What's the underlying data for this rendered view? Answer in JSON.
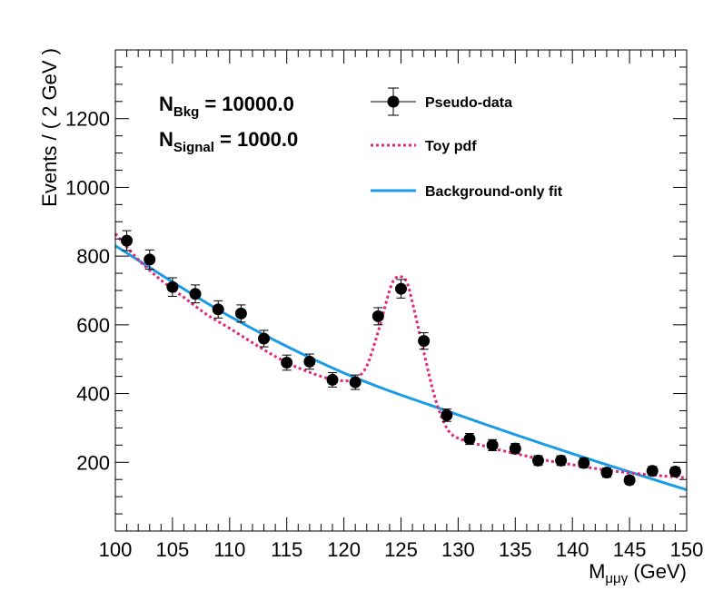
{
  "chart_data": {
    "type": "scatter",
    "xlabel_main": "M",
    "xlabel_sub": "μμγ",
    "xlabel_unit": " (GeV)",
    "ylabel": "Events / ( 2 GeV )",
    "xlim": [
      100,
      150
    ],
    "ylim": [
      0,
      1400
    ],
    "x_ticks": [
      100,
      105,
      110,
      115,
      120,
      125,
      130,
      135,
      140,
      145,
      150
    ],
    "y_ticks": [
      200,
      400,
      600,
      800,
      1000,
      1200
    ],
    "grid": false,
    "annotations": [
      {
        "main": "N",
        "sub": "Bkg",
        "value": " = 10000.0"
      },
      {
        "main": "N",
        "sub": "Signal",
        "value": " = 1000.0"
      }
    ],
    "legend": [
      {
        "label": "Pseudo-data",
        "style": "marker",
        "color": "#000000"
      },
      {
        "label": "Toy pdf",
        "style": "dotted",
        "color": "#e0287a"
      },
      {
        "label": "Background-only fit",
        "style": "solid",
        "color": "#1a9be6"
      }
    ],
    "series": [
      {
        "name": "Pseudo-data",
        "style": "marker",
        "color": "#000000",
        "x": [
          101,
          103,
          105,
          107,
          109,
          111,
          113,
          115,
          117,
          119,
          121,
          123,
          125,
          127,
          129,
          131,
          133,
          135,
          137,
          139,
          141,
          143,
          145,
          147,
          149
        ],
        "y": [
          845,
          790,
          710,
          690,
          645,
          633,
          560,
          490,
          493,
          440,
          433,
          625,
          705,
          553,
          337,
          268,
          250,
          240,
          205,
          205,
          198,
          170,
          148,
          175,
          173
        ],
        "yerr": [
          29,
          28,
          27,
          26,
          25,
          25,
          24,
          22,
          22,
          21,
          21,
          25,
          27,
          24,
          18,
          16,
          16,
          15,
          14,
          14,
          14,
          13,
          12,
          13,
          13
        ]
      },
      {
        "name": "Toy pdf",
        "style": "dotted",
        "color": "#e0287a",
        "x": [
          100,
          102,
          104,
          106,
          108,
          110,
          112,
          114,
          116,
          118,
          119,
          120,
          121,
          122,
          123,
          124,
          124.5,
          125,
          125.5,
          126,
          127,
          128,
          129,
          130,
          132,
          134,
          136,
          138,
          140,
          142,
          144,
          146,
          148,
          150
        ],
        "y": [
          865,
          790,
          730,
          680,
          630,
          590,
          548,
          508,
          475,
          450,
          442,
          437,
          443,
          480,
          580,
          700,
          735,
          740,
          725,
          665,
          520,
          385,
          300,
          270,
          250,
          233,
          218,
          204,
          193,
          182,
          173,
          166,
          160,
          155
        ]
      },
      {
        "name": "Background-only fit",
        "style": "solid",
        "color": "#1a9be6",
        "x": [
          100,
          110,
          120,
          130,
          140,
          150
        ],
        "y": [
          830,
          625,
          460,
          338,
          225,
          120
        ]
      }
    ]
  }
}
